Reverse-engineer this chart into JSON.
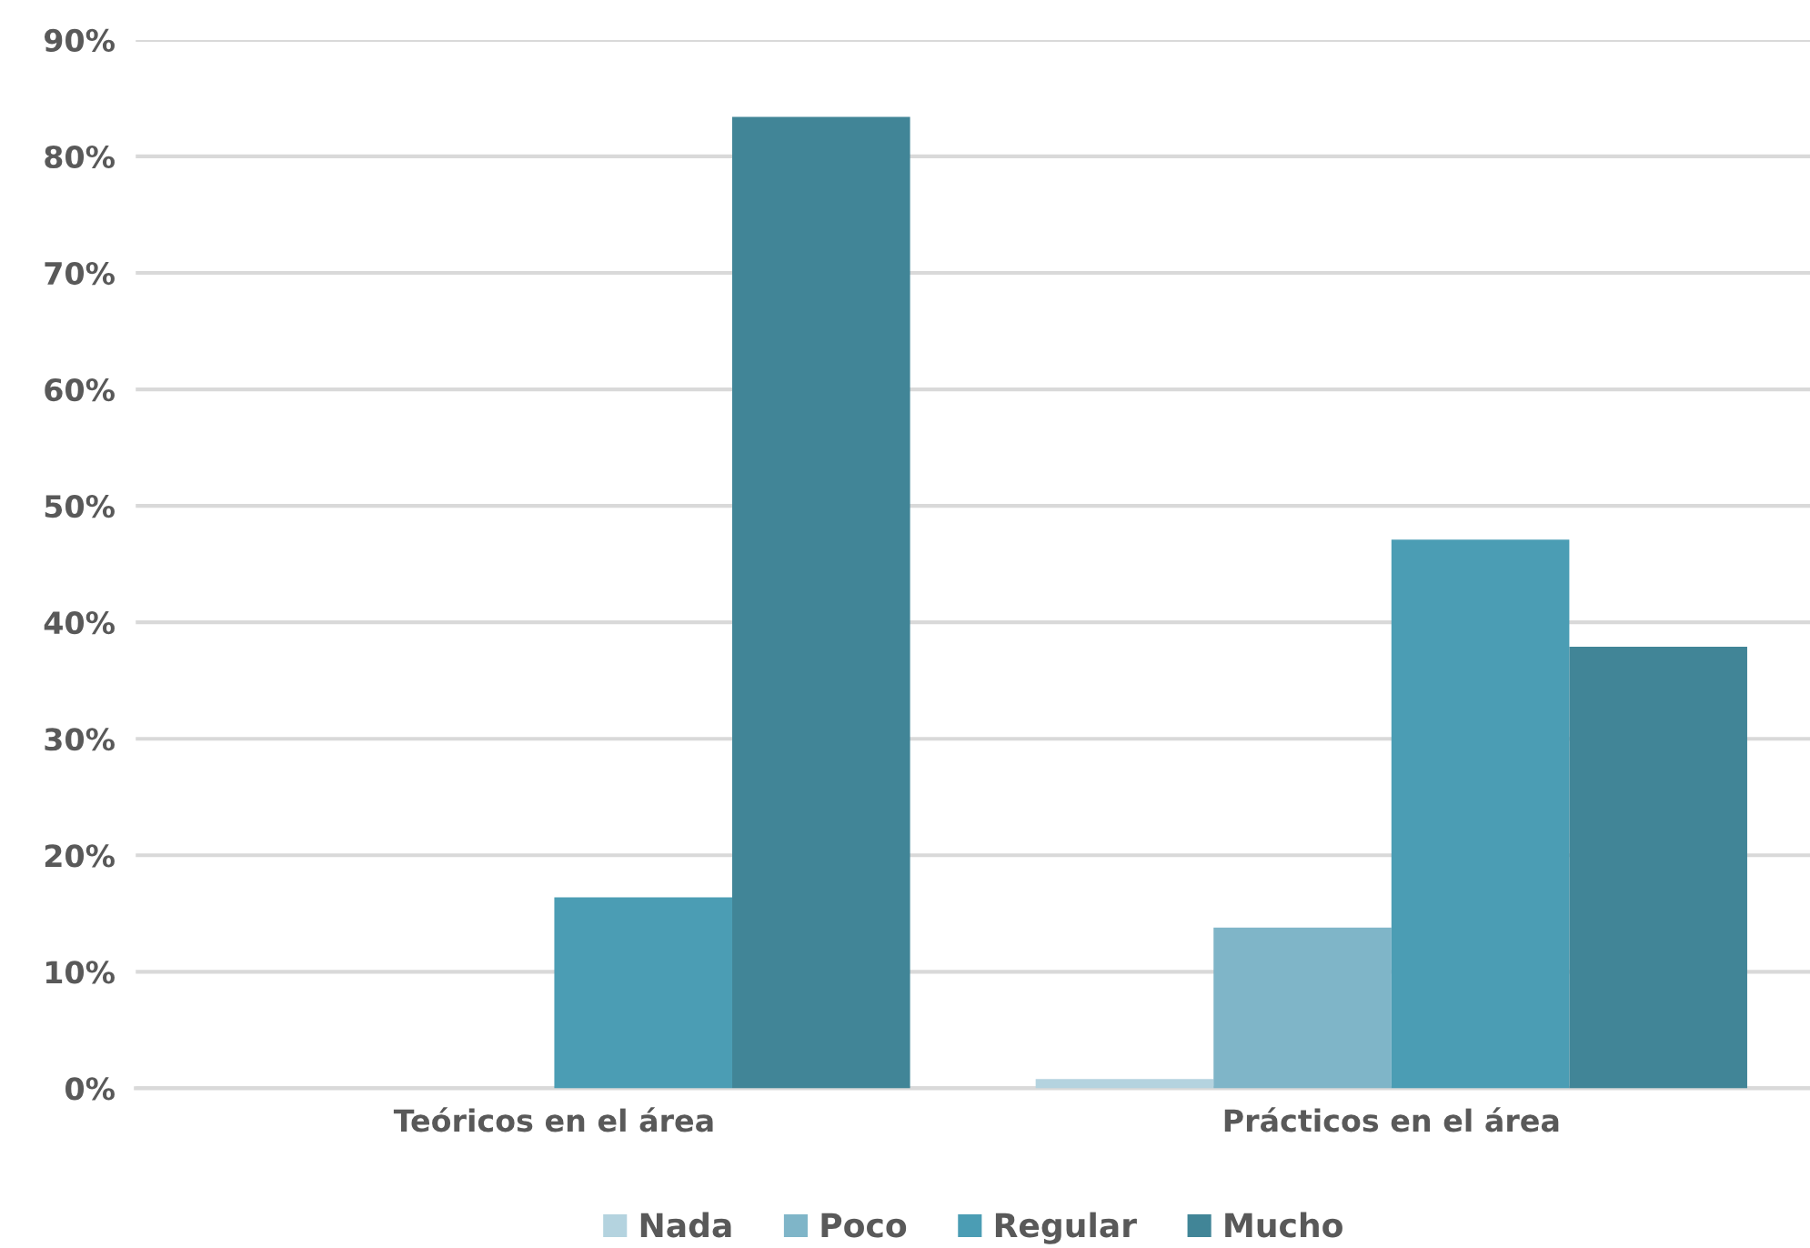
{
  "chart_data": {
    "type": "bar",
    "categories": [
      "Teóricos en el área",
      "Prácticos en el área"
    ],
    "series": [
      {
        "name": "Nada",
        "color": "#b4d3df",
        "values": [
          0,
          0.8
        ]
      },
      {
        "name": "Poco",
        "color": "#7fb5c8",
        "values": [
          0,
          13.8
        ]
      },
      {
        "name": "Regular",
        "color": "#4b9db4",
        "values": [
          16.4,
          47.1
        ]
      },
      {
        "name": "Mucho",
        "color": "#418597",
        "values": [
          83.4,
          37.9
        ]
      }
    ],
    "ylim": [
      0,
      90
    ],
    "yticks": [
      {
        "value": 0,
        "label": "0%"
      },
      {
        "value": 10,
        "label": "10%"
      },
      {
        "value": 20,
        "label": "20%"
      },
      {
        "value": 30,
        "label": "30%"
      },
      {
        "value": 40,
        "label": "40%"
      },
      {
        "value": 50,
        "label": "50%"
      },
      {
        "value": 60,
        "label": "60%"
      },
      {
        "value": 70,
        "label": "70%"
      },
      {
        "value": 80,
        "label": "80%"
      },
      {
        "value": 90,
        "label": "90%"
      }
    ],
    "grid": "y",
    "legend": "bottom"
  }
}
